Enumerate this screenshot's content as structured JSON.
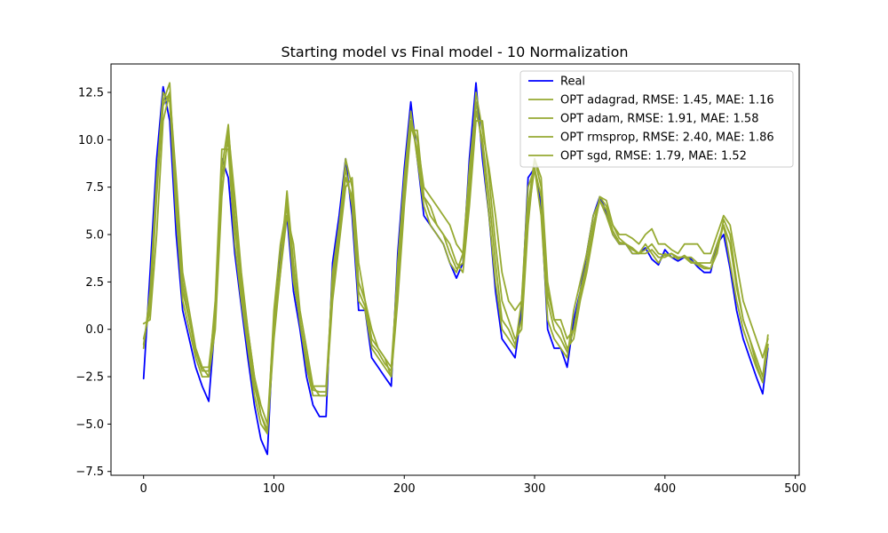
{
  "chart_data": {
    "type": "line",
    "title": "Starting model vs Final model - 10 Normalization",
    "xlabel": "",
    "ylabel": "",
    "xlim": [
      -25,
      503
    ],
    "ylim": [
      -7.7,
      14.0
    ],
    "x_ticks": [
      0,
      100,
      200,
      300,
      400,
      500
    ],
    "y_ticks": [
      -7.5,
      -5.0,
      -2.5,
      0.0,
      2.5,
      5.0,
      7.5,
      10.0,
      12.5
    ],
    "x_tick_labels": [
      "0",
      "100",
      "200",
      "300",
      "400",
      "500"
    ],
    "y_tick_labels": [
      "−7.5",
      "−5.0",
      "−2.5",
      "0.0",
      "2.5",
      "5.0",
      "7.5",
      "10.0",
      "12.5"
    ],
    "grid": false,
    "legend_position": "top-right",
    "key_points_x": [
      0,
      5,
      10,
      15,
      20,
      25,
      30,
      35,
      40,
      45,
      50,
      55,
      60,
      65,
      70,
      75,
      80,
      85,
      90,
      95,
      100,
      105,
      110,
      115,
      120,
      125,
      130,
      135,
      140,
      145,
      150,
      155,
      160,
      165,
      170,
      175,
      180,
      185,
      190,
      195,
      200,
      205,
      210,
      215,
      220,
      225,
      230,
      235,
      240,
      245,
      250,
      255,
      260,
      265,
      270,
      275,
      280,
      285,
      290,
      295,
      300,
      305,
      310,
      315,
      320,
      325,
      330,
      335,
      340,
      345,
      350,
      355,
      360,
      365,
      370,
      375,
      380,
      385,
      390,
      395,
      400,
      405,
      410,
      415,
      420,
      425,
      430,
      435,
      440,
      445,
      450,
      455,
      460,
      465,
      470,
      475,
      479
    ],
    "series": [
      {
        "name": "Real",
        "color": "#0000ff",
        "values": [
          -2.6,
          3.0,
          9.0,
          12.8,
          11.0,
          5.0,
          1.0,
          -0.5,
          -2.0,
          -3.0,
          -3.8,
          0.5,
          9.0,
          8.0,
          4.0,
          1.2,
          -1.5,
          -4.0,
          -5.8,
          -6.6,
          0.5,
          4.0,
          6.0,
          2.0,
          0.0,
          -2.5,
          -4.0,
          -4.6,
          -4.6,
          3.5,
          6.0,
          9.0,
          6.0,
          1.0,
          1.0,
          -1.5,
          -2.0,
          -2.5,
          -3.0,
          4.0,
          8.5,
          12.0,
          9.0,
          6.0,
          5.5,
          5.0,
          4.5,
          3.5,
          2.7,
          3.5,
          9.0,
          13.0,
          9.0,
          6.0,
          2.0,
          -0.5,
          -1.0,
          -1.5,
          1.0,
          8.0,
          8.5,
          6.5,
          0.0,
          -1.0,
          -1.0,
          -2.0,
          0.5,
          2.0,
          4.0,
          6.0,
          7.0,
          6.2,
          5.0,
          4.5,
          4.5,
          4.0,
          4.0,
          4.3,
          3.7,
          3.4,
          4.2,
          3.8,
          3.6,
          3.8,
          3.7,
          3.3,
          3.0,
          3.0,
          4.5,
          5.0,
          3.2,
          1.0,
          -0.5,
          -1.5,
          -2.5,
          -3.4,
          -1.0
        ]
      },
      {
        "name": "OPT adagrad, RMSE: 1.45, MAE: 1.16",
        "color": "#96aa32",
        "values": [
          -1.0,
          2.0,
          8.0,
          12.5,
          12.0,
          6.0,
          1.5,
          0.0,
          -1.5,
          -2.5,
          -2.5,
          1.5,
          9.5,
          9.5,
          4.5,
          1.5,
          -1.0,
          -3.5,
          -5.0,
          -5.5,
          1.0,
          4.5,
          6.5,
          2.5,
          0.5,
          -2.0,
          -3.5,
          -3.5,
          -3.5,
          3.0,
          5.5,
          8.5,
          6.5,
          1.5,
          1.0,
          -1.0,
          -1.5,
          -2.0,
          -2.5,
          3.5,
          8.0,
          11.5,
          9.0,
          6.5,
          5.5,
          5.0,
          4.5,
          3.5,
          3.0,
          4.0,
          8.5,
          12.0,
          9.5,
          6.0,
          2.5,
          0.0,
          -0.5,
          -1.0,
          1.5,
          7.5,
          8.5,
          6.0,
          0.5,
          -0.5,
          -1.0,
          -1.5,
          1.0,
          2.5,
          4.0,
          6.0,
          6.8,
          6.0,
          5.0,
          4.5,
          4.5,
          4.0,
          4.0,
          4.5,
          4.0,
          3.5,
          4.0,
          3.8,
          3.8,
          3.8,
          3.5,
          3.5,
          3.5,
          3.5,
          4.5,
          5.5,
          3.5,
          1.5,
          0.0,
          -1.0,
          -2.0,
          -2.8,
          -0.8
        ]
      },
      {
        "name": "OPT adam, RMSE: 1.91, MAE: 1.58",
        "color": "#96aa32",
        "values": [
          0.3,
          0.5,
          5.0,
          11.0,
          12.5,
          8.0,
          3.0,
          1.0,
          -1.0,
          -2.0,
          -2.5,
          0.0,
          7.0,
          10.5,
          7.0,
          3.0,
          0.0,
          -2.5,
          -4.5,
          -5.5,
          -0.5,
          3.0,
          6.0,
          4.5,
          1.0,
          -1.0,
          -3.0,
          -3.5,
          -3.5,
          1.5,
          4.5,
          7.5,
          8.0,
          3.5,
          1.5,
          0.0,
          -1.0,
          -1.5,
          -2.5,
          1.5,
          6.5,
          10.5,
          10.5,
          7.0,
          6.5,
          5.5,
          5.0,
          4.5,
          3.5,
          3.0,
          6.5,
          11.0,
          11.0,
          8.0,
          4.5,
          1.5,
          0.5,
          -0.5,
          0.0,
          5.5,
          9.0,
          8.0,
          2.5,
          0.5,
          0.0,
          -1.0,
          -0.5,
          1.5,
          3.0,
          5.0,
          7.0,
          6.8,
          5.5,
          4.8,
          4.5,
          4.3,
          4.0,
          4.0,
          4.2,
          3.8,
          3.8,
          4.0,
          3.8,
          3.8,
          3.8,
          3.5,
          3.3,
          3.2,
          4.0,
          5.8,
          5.0,
          2.5,
          0.5,
          -0.5,
          -1.5,
          -2.5,
          -0.3
        ]
      },
      {
        "name": "OPT rmsprop, RMSE: 2.40, MAE: 1.86",
        "color": "#96aa32",
        "values": [
          -0.5,
          1.0,
          7.0,
          12.0,
          13.0,
          7.0,
          2.5,
          0.5,
          -1.0,
          -2.0,
          -2.0,
          1.0,
          8.5,
          10.8,
          6.0,
          2.5,
          0.0,
          -2.5,
          -4.0,
          -5.0,
          0.5,
          3.5,
          7.3,
          3.5,
          0.5,
          -1.5,
          -3.0,
          -3.0,
          -3.0,
          2.5,
          5.0,
          9.0,
          7.5,
          2.5,
          1.5,
          -0.5,
          -1.0,
          -1.5,
          -2.0,
          3.0,
          7.5,
          11.0,
          10.0,
          7.5,
          7.0,
          6.5,
          6.0,
          5.5,
          4.5,
          4.0,
          7.5,
          12.5,
          10.5,
          8.5,
          6.0,
          3.0,
          1.5,
          1.0,
          1.5,
          6.5,
          9.0,
          7.5,
          2.0,
          0.5,
          0.5,
          -0.5,
          0.0,
          2.0,
          3.5,
          5.5,
          7.0,
          6.5,
          5.5,
          5.0,
          5.0,
          4.8,
          4.5,
          5.0,
          5.3,
          4.5,
          4.5,
          4.2,
          4.0,
          4.5,
          4.5,
          4.5,
          4.0,
          4.0,
          5.0,
          6.0,
          5.5,
          3.5,
          1.5,
          0.5,
          -0.5,
          -1.5,
          -0.5
        ]
      },
      {
        "name": "OPT sgd, RMSE: 1.79, MAE: 1.52",
        "color": "#96aa32",
        "values": [
          -0.8,
          1.5,
          7.5,
          11.8,
          12.5,
          7.0,
          2.0,
          0.5,
          -1.2,
          -2.2,
          -2.2,
          0.5,
          8.0,
          10.0,
          5.5,
          2.0,
          -0.5,
          -3.0,
          -4.5,
          -5.3,
          0.0,
          3.0,
          6.8,
          3.0,
          0.3,
          -1.8,
          -3.2,
          -3.3,
          -3.3,
          2.0,
          4.8,
          8.0,
          7.0,
          2.0,
          1.2,
          -0.8,
          -1.2,
          -1.8,
          -2.2,
          2.5,
          7.0,
          10.8,
          9.5,
          7.0,
          6.0,
          5.5,
          5.0,
          4.0,
          3.2,
          3.5,
          7.0,
          11.5,
          10.0,
          7.0,
          3.5,
          0.5,
          0.0,
          -0.8,
          0.5,
          6.0,
          8.5,
          7.0,
          1.5,
          0.0,
          -0.5,
          -1.2,
          0.0,
          1.8,
          3.2,
          5.2,
          6.8,
          6.3,
          5.2,
          4.6,
          4.5,
          4.2,
          4.0,
          4.2,
          4.5,
          4.0,
          3.9,
          4.0,
          3.7,
          3.9,
          3.6,
          3.4,
          3.2,
          3.2,
          4.2,
          5.5,
          4.5,
          2.2,
          0.5,
          -0.5,
          -1.8,
          -2.8,
          -0.8
        ]
      }
    ]
  }
}
